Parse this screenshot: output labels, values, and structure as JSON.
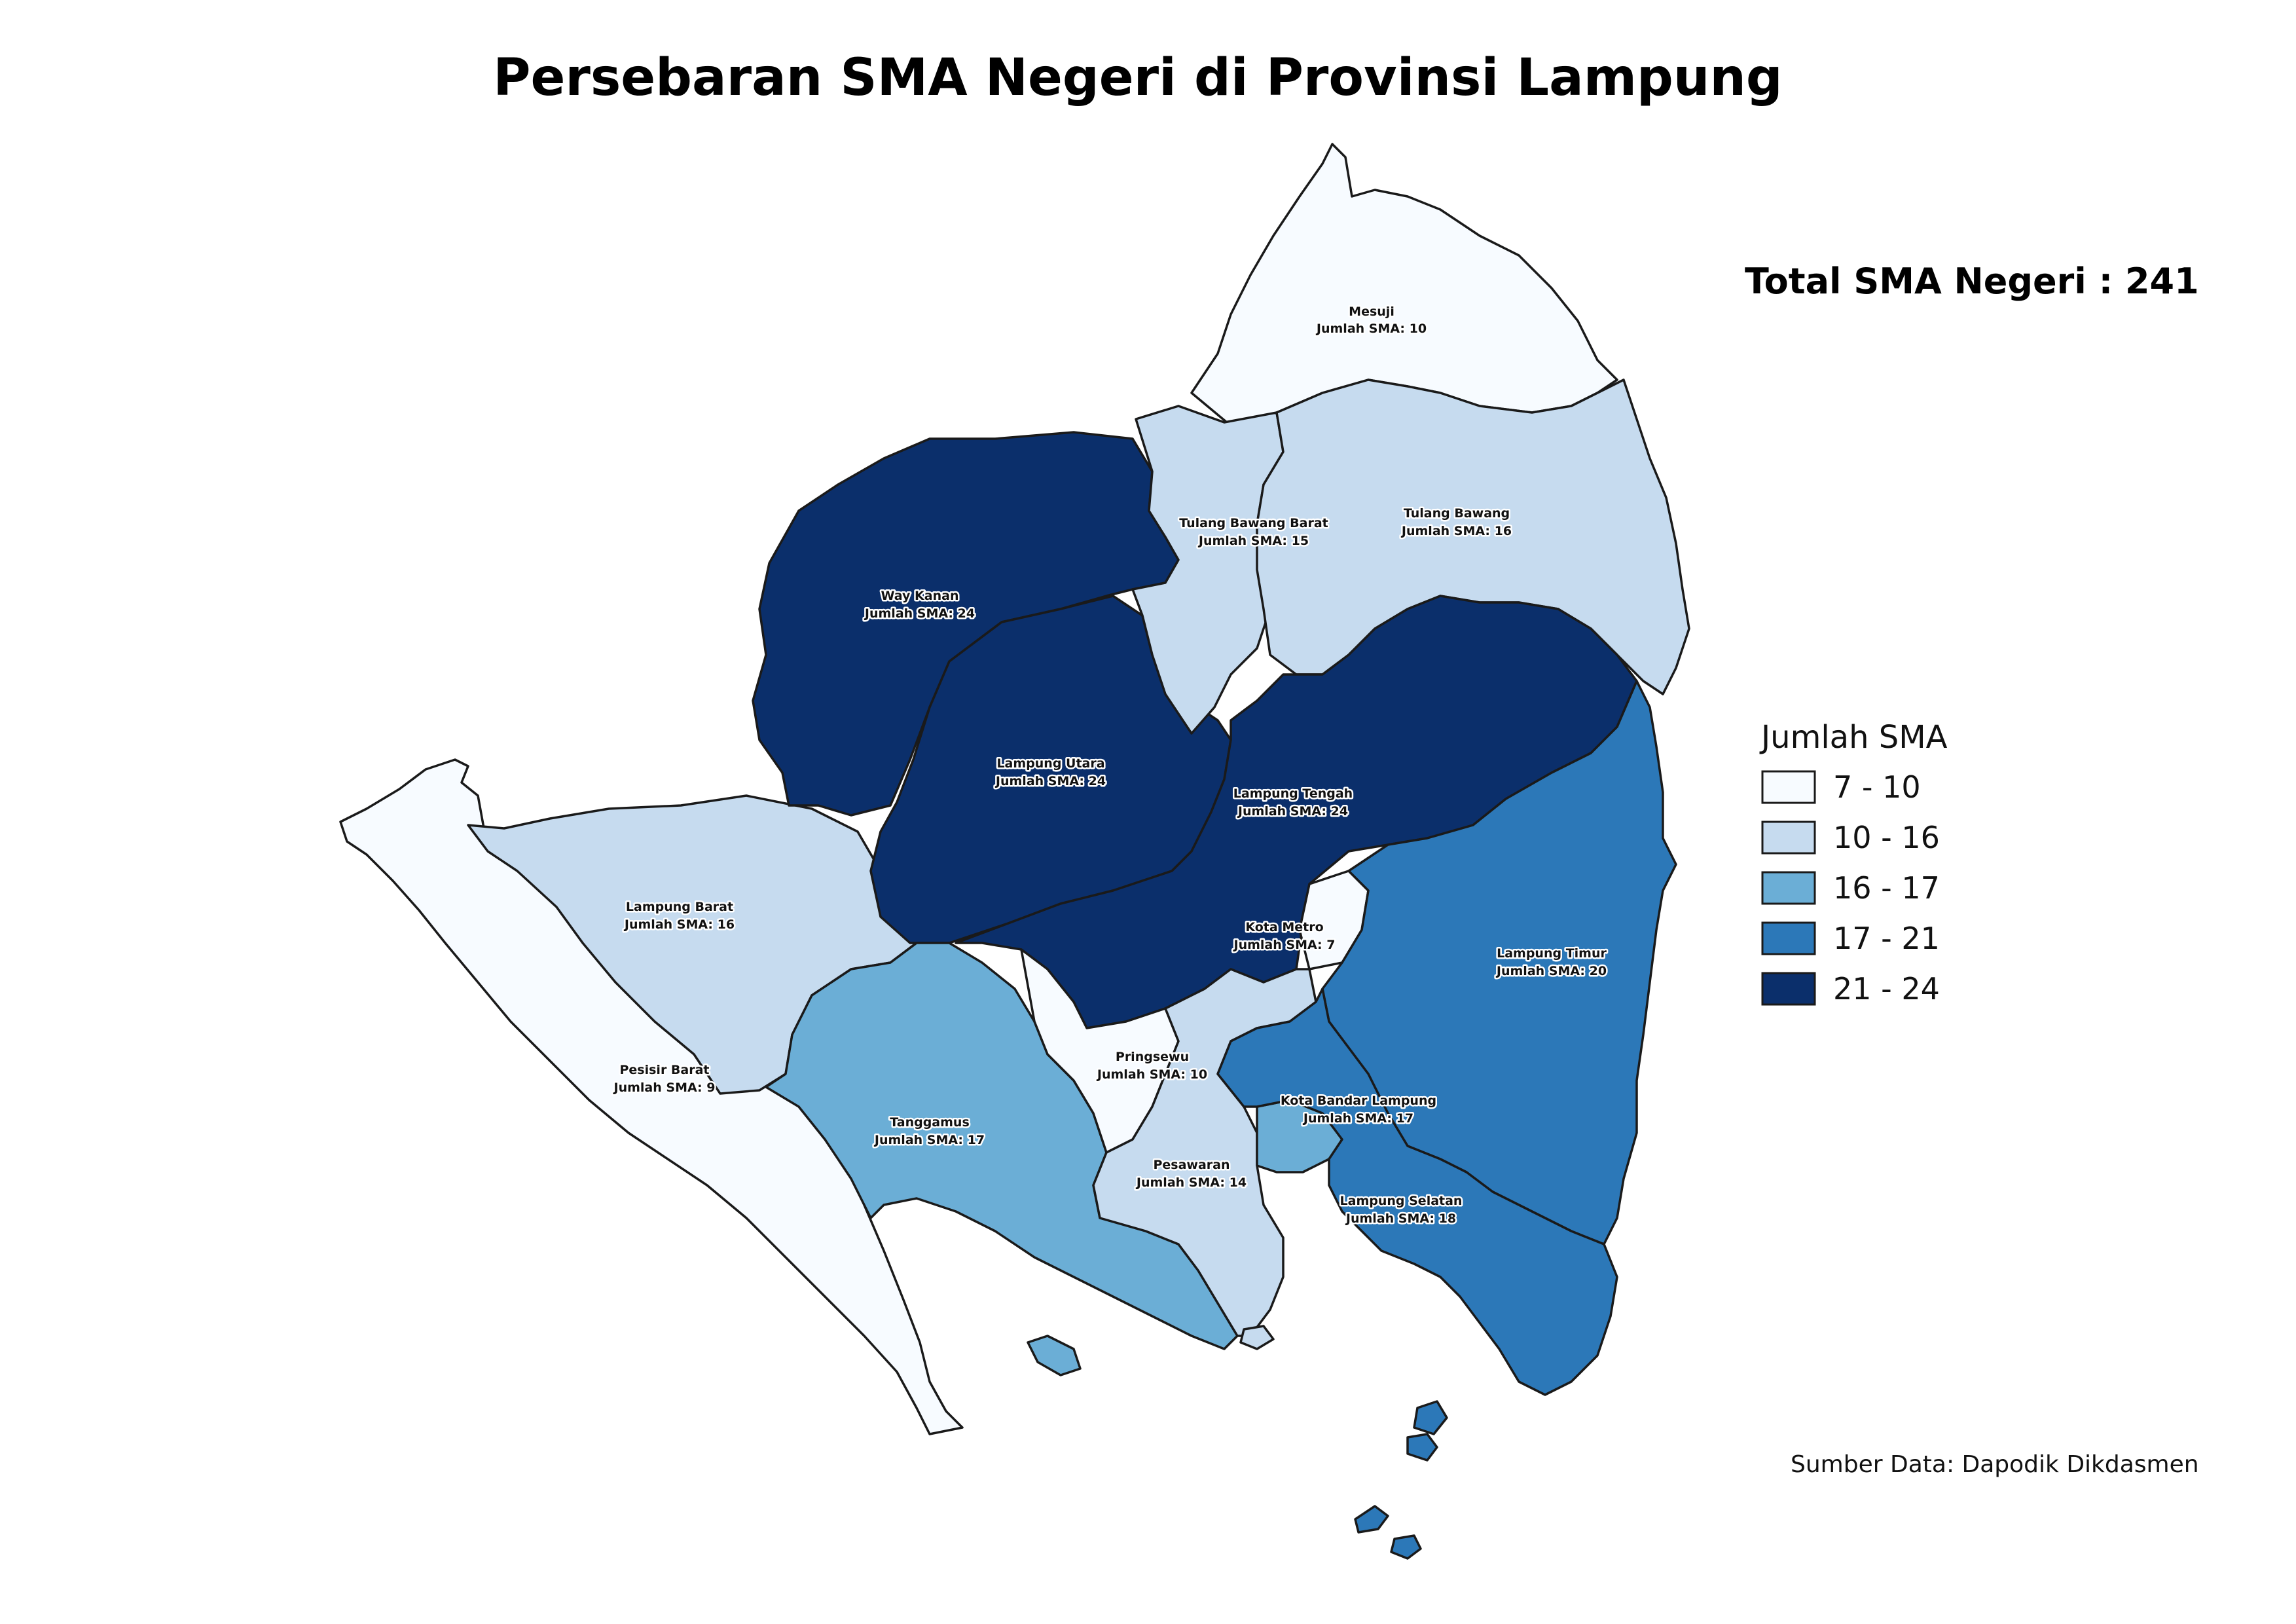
{
  "title": "Persebaran SMA Negeri di Provinsi Lampung",
  "total_label": "Total SMA Negeri : 241",
  "source": "Sumber Data: Dapodik Dikdasmen",
  "legend": {
    "title": "Jumlah SMA",
    "classes": [
      {
        "label": "7 - 10",
        "color": "#f7fbff"
      },
      {
        "label": "10 - 16",
        "color": "#c6dbef"
      },
      {
        "label": "16 - 17",
        "color": "#6baed6"
      },
      {
        "label": "17 - 21",
        "color": "#2c78b8"
      },
      {
        "label": "21 - 24",
        "color": "#0b2f6b"
      }
    ]
  },
  "regions": [
    {
      "name": "Mesuji",
      "label": "Jumlah SMA: 10",
      "value": 10
    },
    {
      "name": "Tulang Bawang Barat",
      "label": "Jumlah SMA: 15",
      "value": 15
    },
    {
      "name": "Tulang Bawang",
      "label": "Jumlah SMA: 16",
      "value": 16
    },
    {
      "name": "Way Kanan",
      "label": "Jumlah SMA: 24",
      "value": 24
    },
    {
      "name": "Lampung Utara",
      "label": "Jumlah SMA: 24",
      "value": 24
    },
    {
      "name": "Lampung Tengah",
      "label": "Jumlah SMA: 24",
      "value": 24
    },
    {
      "name": "Lampung Barat",
      "label": "Jumlah SMA: 16",
      "value": 16
    },
    {
      "name": "Kota Metro",
      "label": "Jumlah SMA: 7",
      "value": 7
    },
    {
      "name": "Lampung Timur",
      "label": "Jumlah SMA: 20",
      "value": 20
    },
    {
      "name": "Pringsewu",
      "label": "Jumlah SMA: 10",
      "value": 10
    },
    {
      "name": "Kota Bandar Lampung",
      "label": "Jumlah SMA: 17",
      "value": 17
    },
    {
      "name": "Pesisir Barat",
      "label": "Jumlah SMA: 9",
      "value": 9
    },
    {
      "name": "Tanggamus",
      "label": "Jumlah SMA: 17",
      "value": 17
    },
    {
      "name": "Pesawaran",
      "label": "Jumlah SMA: 14",
      "value": 14
    },
    {
      "name": "Lampung Selatan",
      "label": "Jumlah SMA: 18",
      "value": 18
    }
  ]
}
